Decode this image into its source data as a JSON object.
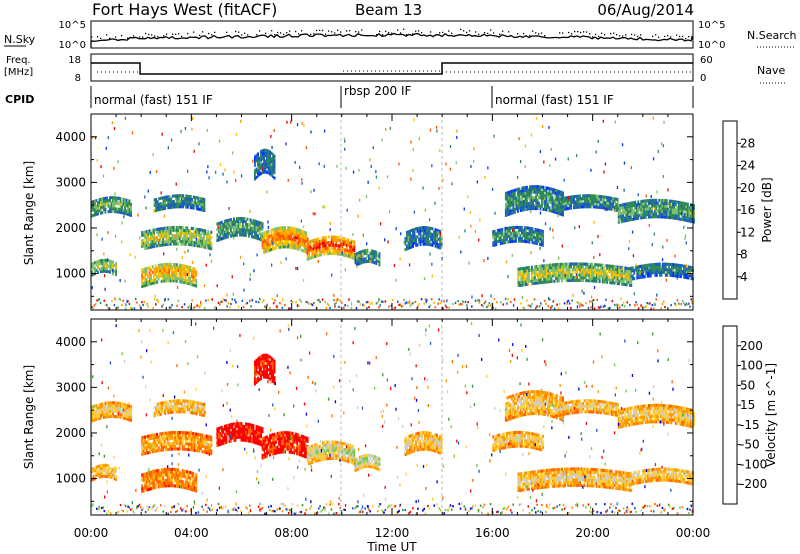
{
  "header": {
    "station": "Fort Hays West (fitACF)",
    "beam": "Beam 13",
    "date": "06/Aug/2014"
  },
  "noise_panel": {
    "left_label": "N.Sky",
    "right_label": "N.Search",
    "left_ticks": [
      "10^5",
      "10^0"
    ],
    "right_ticks": [
      "10^5",
      "10^0"
    ]
  },
  "freq_panel": {
    "left_label_lines": [
      "Freq.",
      "[MHz]"
    ],
    "right_label": "Nave",
    "left_ticks": [
      "18",
      "8"
    ],
    "right_ticks": [
      "60",
      "0"
    ]
  },
  "cpid_panel": {
    "label": "CPID",
    "segments": [
      {
        "text": "normal (fast) 151 IF",
        "start_h": 0,
        "end_h": 10
      },
      {
        "text": "rbsp 200 IF",
        "start_h": 10,
        "end_h": 16
      },
      {
        "text": "normal (fast) 151 IF",
        "start_h": 16,
        "end_h": 24
      }
    ]
  },
  "axes": {
    "ylabel": "Slant Range [km]",
    "xlabel": "Time UT",
    "x_ticks": [
      "00:00",
      "04:00",
      "08:00",
      "12:00",
      "16:00",
      "20:00",
      "00:00"
    ],
    "y_ticks": [
      "1000",
      "2000",
      "3000",
      "4000"
    ]
  },
  "colors": {
    "power": [
      "#0033ff",
      "#1f5fbf",
      "#2e8b57",
      "#7fc06f",
      "#f5c400",
      "#ff9900",
      "#ff5500",
      "#ee0000"
    ],
    "velocity": [
      "#ff0000",
      "#ff6600",
      "#ff9900",
      "#ffcc33",
      "#cccccc",
      "#77cc44",
      "#339933",
      "#2255cc",
      "#0000dd"
    ]
  },
  "chart_data": [
    {
      "type": "heatmap",
      "title": "",
      "xlabel": "Time UT",
      "ylabel": "Slant Range [km]",
      "xlim": [
        0,
        24
      ],
      "ylim": [
        200,
        4500
      ],
      "colorbar_label": "Power [dB]",
      "colorbar_ticks": [
        "4",
        "8",
        "12",
        "16",
        "20",
        "24",
        "28"
      ],
      "regions": [
        {
          "t_start": 0.0,
          "t_end": 1.6,
          "r_center": 2400,
          "r_width": 320,
          "level": 0.45
        },
        {
          "t_start": 0.0,
          "t_end": 1.0,
          "r_center": 1080,
          "r_width": 280,
          "level": 0.55
        },
        {
          "t_start": 2.0,
          "t_end": 4.8,
          "r_center": 1700,
          "r_width": 380,
          "level": 0.55
        },
        {
          "t_start": 2.0,
          "t_end": 4.2,
          "r_center": 900,
          "r_width": 420,
          "level": 0.7
        },
        {
          "t_start": 2.5,
          "t_end": 4.5,
          "r_center": 2500,
          "r_width": 300,
          "level": 0.35
        },
        {
          "t_start": 5.0,
          "t_end": 6.8,
          "r_center": 1900,
          "r_width": 400,
          "level": 0.4
        },
        {
          "t_start": 6.8,
          "t_end": 8.6,
          "r_center": 1650,
          "r_width": 450,
          "level": 0.8
        },
        {
          "t_start": 8.6,
          "t_end": 10.5,
          "r_center": 1500,
          "r_width": 420,
          "level": 0.9
        },
        {
          "t_start": 10.5,
          "t_end": 11.5,
          "r_center": 1300,
          "r_width": 300,
          "level": 0.35
        },
        {
          "t_start": 6.5,
          "t_end": 7.3,
          "r_center": 3300,
          "r_width": 500,
          "level": 0.3
        },
        {
          "t_start": 12.5,
          "t_end": 14.0,
          "r_center": 1700,
          "r_width": 400,
          "level": 0.3
        },
        {
          "t_start": 16.0,
          "t_end": 18.0,
          "r_center": 1750,
          "r_width": 320,
          "level": 0.35
        },
        {
          "t_start": 16.5,
          "t_end": 18.8,
          "r_center": 2500,
          "r_width": 500,
          "level": 0.35
        },
        {
          "t_start": 18.5,
          "t_end": 21.0,
          "r_center": 2500,
          "r_width": 300,
          "level": 0.35
        },
        {
          "t_start": 17.0,
          "t_end": 21.5,
          "r_center": 900,
          "r_width": 380,
          "level": 0.55
        },
        {
          "t_start": 21.0,
          "t_end": 24.0,
          "r_center": 2300,
          "r_width": 400,
          "level": 0.4
        },
        {
          "t_start": 21.5,
          "t_end": 24.0,
          "r_center": 1000,
          "r_width": 300,
          "level": 0.3
        }
      ]
    },
    {
      "type": "heatmap",
      "title": "",
      "xlabel": "Time UT",
      "ylabel": "Slant Range [km]",
      "xlim": [
        0,
        24
      ],
      "ylim": [
        200,
        4500
      ],
      "colorbar_label": "Velocity [m s^-1]",
      "colorbar_ticks": [
        "-200",
        "-100",
        "-50",
        "-15",
        "15",
        "50",
        "100",
        "200"
      ],
      "regions": [
        {
          "t_start": 0.0,
          "t_end": 1.6,
          "r_center": 2400,
          "r_width": 320,
          "level": 0.45
        },
        {
          "t_start": 0.0,
          "t_end": 1.0,
          "r_center": 1080,
          "r_width": 280,
          "level": 0.45
        },
        {
          "t_start": 2.0,
          "t_end": 4.8,
          "r_center": 1700,
          "r_width": 380,
          "level": 0.35
        },
        {
          "t_start": 2.0,
          "t_end": 4.2,
          "r_center": 900,
          "r_width": 420,
          "level": 0.3
        },
        {
          "t_start": 2.5,
          "t_end": 4.5,
          "r_center": 2500,
          "r_width": 300,
          "level": 0.45
        },
        {
          "t_start": 5.0,
          "t_end": 6.8,
          "r_center": 1900,
          "r_width": 400,
          "level": 0.05
        },
        {
          "t_start": 6.8,
          "t_end": 8.6,
          "r_center": 1650,
          "r_width": 450,
          "level": 0.1
        },
        {
          "t_start": 8.6,
          "t_end": 10.5,
          "r_center": 1500,
          "r_width": 420,
          "level": 0.55
        },
        {
          "t_start": 10.5,
          "t_end": 11.5,
          "r_center": 1300,
          "r_width": 300,
          "level": 0.6
        },
        {
          "t_start": 6.5,
          "t_end": 7.3,
          "r_center": 3300,
          "r_width": 500,
          "level": 0.05
        },
        {
          "t_start": 12.5,
          "t_end": 14.0,
          "r_center": 1700,
          "r_width": 400,
          "level": 0.45
        },
        {
          "t_start": 16.0,
          "t_end": 18.0,
          "r_center": 1750,
          "r_width": 320,
          "level": 0.45
        },
        {
          "t_start": 16.5,
          "t_end": 18.8,
          "r_center": 2500,
          "r_width": 500,
          "level": 0.45
        },
        {
          "t_start": 18.5,
          "t_end": 21.0,
          "r_center": 2500,
          "r_width": 300,
          "level": 0.45
        },
        {
          "t_start": 17.0,
          "t_end": 21.5,
          "r_center": 900,
          "r_width": 380,
          "level": 0.45
        },
        {
          "t_start": 21.0,
          "t_end": 24.0,
          "r_center": 2300,
          "r_width": 400,
          "level": 0.45
        },
        {
          "t_start": 21.5,
          "t_end": 24.0,
          "r_center": 1000,
          "r_width": 300,
          "level": 0.45
        }
      ]
    }
  ]
}
